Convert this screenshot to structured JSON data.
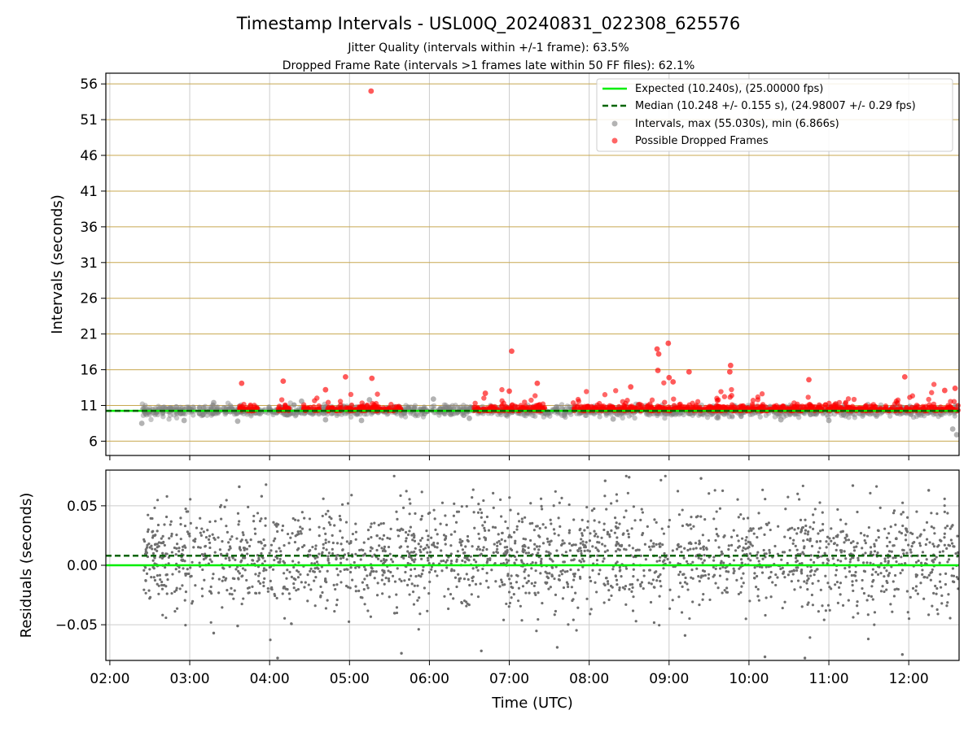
{
  "figure": {
    "title": "Timestamp Intervals - USL00Q_20240831_022308_625576",
    "subtitle1": "Jitter Quality (intervals within +/-1 frame): 63.5%",
    "subtitle2": "Dropped Frame Rate (intervals >1 frames late within 50 FF files): 62.1%"
  },
  "colors": {
    "expected": "#00ee00",
    "median": "#006400",
    "intervals": "#808080",
    "dropped": "#ff0000",
    "grid_top": "#c8a850",
    "grid": "#cccccc",
    "residuals": "#6e6e6e"
  },
  "chart_data": [
    {
      "type": "scatter",
      "ylabel": "Intervals (seconds)",
      "xlabel": "",
      "xlim_hours": [
        1.95,
        12.63
      ],
      "ylim": [
        4.0,
        57.5
      ],
      "yticks": [
        6,
        11,
        16,
        21,
        26,
        31,
        36,
        41,
        46,
        51,
        56
      ],
      "expected_interval": 10.24,
      "median_interval": 10.248,
      "grid": true,
      "legend_placement": "upper right",
      "legend": [
        "Expected (10.240s), (25.00000 fps)",
        "Median (10.248 +/- 0.155 s), (24.98007 +/- 0.29 fps)",
        "Intervals, max (55.030s), min (6.866s)",
        "Possible Dropped Frames"
      ],
      "series": [
        {
          "name": "Intervals, max (55.030s), min (6.866s)",
          "points": [
            {
              "x": 2.4,
              "y": 8.5
            },
            {
              "x": 2.93,
              "y": 8.9
            },
            {
              "x": 3.3,
              "y": 11.4
            },
            {
              "x": 3.6,
              "y": 8.8
            },
            {
              "x": 4.4,
              "y": 11.6
            },
            {
              "x": 4.7,
              "y": 9.0
            },
            {
              "x": 5.15,
              "y": 8.9
            },
            {
              "x": 5.25,
              "y": 11.8
            },
            {
              "x": 6.05,
              "y": 11.9
            },
            {
              "x": 6.5,
              "y": 9.2
            },
            {
              "x": 8.3,
              "y": 9.1
            },
            {
              "x": 9.6,
              "y": 9.3
            },
            {
              "x": 10.4,
              "y": 9.0
            },
            {
              "x": 11.0,
              "y": 8.9
            },
            {
              "x": 12.55,
              "y": 7.7
            },
            {
              "x": 12.6,
              "y": 6.9
            }
          ]
        },
        {
          "name": "Possible Dropped Frames",
          "points": [
            {
              "x": 5.27,
              "y": 55.0
            },
            {
              "x": 3.65,
              "y": 14.1
            },
            {
              "x": 4.17,
              "y": 14.4
            },
            {
              "x": 4.95,
              "y": 15.0
            },
            {
              "x": 5.28,
              "y": 14.8
            },
            {
              "x": 7.03,
              "y": 18.6
            },
            {
              "x": 7.35,
              "y": 14.1
            },
            {
              "x": 8.85,
              "y": 18.9
            },
            {
              "x": 8.87,
              "y": 18.2
            },
            {
              "x": 8.86,
              "y": 15.9
            },
            {
              "x": 8.99,
              "y": 19.7
            },
            {
              "x": 9.0,
              "y": 14.9
            },
            {
              "x": 9.05,
              "y": 14.3
            },
            {
              "x": 9.25,
              "y": 15.7
            },
            {
              "x": 9.77,
              "y": 16.6
            },
            {
              "x": 9.76,
              "y": 15.7
            },
            {
              "x": 10.75,
              "y": 14.6
            },
            {
              "x": 11.95,
              "y": 15.0
            },
            {
              "x": 12.58,
              "y": 13.4
            },
            {
              "x": 12.45,
              "y": 13.1
            },
            {
              "x": 7.0,
              "y": 13.0
            },
            {
              "x": 8.52,
              "y": 13.6
            },
            {
              "x": 6.7,
              "y": 12.7
            },
            {
              "x": 4.7,
              "y": 13.2
            }
          ]
        }
      ]
    },
    {
      "type": "scatter",
      "ylabel": "Residuals (seconds)",
      "xlabel": "Time (UTC)",
      "xlim_hours": [
        1.95,
        12.63
      ],
      "ylim": [
        -0.08,
        0.08
      ],
      "yticks": [
        0.05,
        0.0,
        -0.05
      ],
      "ytick_labels": [
        "0.05",
        "0.00",
        "−0.05"
      ],
      "xticks": [
        "02:00",
        "03:00",
        "04:00",
        "05:00",
        "06:00",
        "07:00",
        "08:00",
        "09:00",
        "10:00",
        "11:00",
        "12:00"
      ],
      "expected_residual": 0.0,
      "median_residual": 0.008,
      "grid": true,
      "series": [
        {
          "name": "",
          "points": [
            {
              "x": 3.62,
              "y": 0.066
            },
            {
              "x": 3.9,
              "y": 0.058
            },
            {
              "x": 4.1,
              "y": -0.078
            },
            {
              "x": 3.3,
              "y": -0.057
            },
            {
              "x": 3.6,
              "y": -0.051
            },
            {
              "x": 5.65,
              "y": -0.074
            },
            {
              "x": 6.65,
              "y": -0.072
            },
            {
              "x": 7.6,
              "y": -0.069
            },
            {
              "x": 8.2,
              "y": 0.071
            },
            {
              "x": 8.5,
              "y": 0.074
            },
            {
              "x": 9.4,
              "y": 0.073
            },
            {
              "x": 9.2,
              "y": -0.059
            },
            {
              "x": 10.2,
              "y": -0.077
            },
            {
              "x": 10.7,
              "y": -0.078
            },
            {
              "x": 11.92,
              "y": -0.075
            },
            {
              "x": 12.25,
              "y": 0.063
            },
            {
              "x": 11.3,
              "y": 0.067
            },
            {
              "x": 2.45,
              "y": -0.013
            }
          ]
        }
      ]
    }
  ]
}
